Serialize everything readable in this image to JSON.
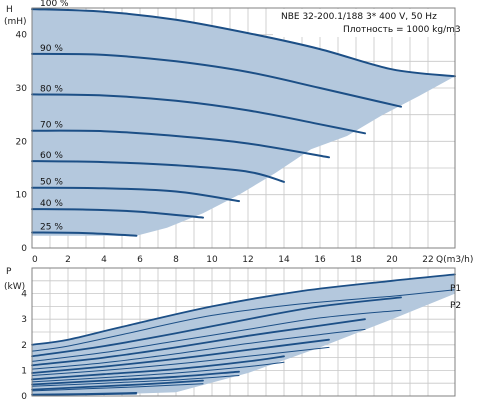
{
  "chart_data": [
    {
      "type": "line",
      "ylabel_top": "H",
      "ylabel_bottom": "(mH)",
      "xlabel": "Q(m3/h)",
      "info_line1": "NBE 32-200.1/188    3* 400 V, 50 Hz",
      "info_line2": "Плотность = 1000 kg/m3",
      "xlim": [
        0,
        23.5
      ],
      "ylim": [
        0,
        45
      ],
      "xticks": [
        "0",
        "2",
        "4",
        "6",
        "8",
        "10",
        "12",
        "14",
        "16",
        "18",
        "20",
        "22"
      ],
      "yticks": [
        "0",
        "10",
        "20",
        "30",
        "40"
      ],
      "grid": true,
      "region": {
        "upper": {
          "x": [
            0,
            4,
            8,
            12,
            16,
            20,
            23.5
          ],
          "y": [
            44.8,
            44.3,
            42.8,
            40.3,
            37.3,
            33.5,
            32.2
          ]
        },
        "lower": {
          "x": [
            0,
            3,
            5.8,
            7.5,
            9.5,
            11.5,
            13.5,
            15.5,
            17.5,
            19.5,
            21.5,
            23.5
          ],
          "y": [
            2.3,
            2.3,
            2.3,
            3.8,
            6.5,
            10,
            14,
            18.5,
            21,
            25,
            28.5,
            32.2
          ]
        }
      },
      "series": [
        {
          "name": "100 %",
          "x": [
            0,
            4,
            8,
            12,
            16,
            20,
            23.5
          ],
          "y": [
            44.8,
            44.3,
            42.8,
            40.3,
            37.3,
            33.5,
            32.2
          ]
        },
        {
          "name": "90 %",
          "x": [
            0,
            4,
            8,
            12,
            16,
            20.5
          ],
          "y": [
            36.4,
            36.2,
            35.0,
            33.0,
            30.0,
            26.5
          ]
        },
        {
          "name": "80 %",
          "x": [
            0,
            4,
            8,
            12,
            16,
            18.5
          ],
          "y": [
            28.8,
            28.6,
            27.6,
            25.8,
            23.2,
            21.5
          ]
        },
        {
          "name": "70 %",
          "x": [
            0,
            4,
            8,
            12,
            16.5
          ],
          "y": [
            22.0,
            21.9,
            21.0,
            19.6,
            17.0
          ]
        },
        {
          "name": "60 %",
          "x": [
            0,
            4,
            8,
            12,
            14
          ],
          "y": [
            16.3,
            16.1,
            15.5,
            14.3,
            12.4
          ]
        },
        {
          "name": "50 %",
          "x": [
            0,
            4,
            8,
            11.5
          ],
          "y": [
            11.3,
            11.2,
            10.6,
            8.8
          ]
        },
        {
          "name": "40 %",
          "x": [
            0,
            3,
            6,
            9.5
          ],
          "y": [
            7.3,
            7.2,
            6.8,
            5.7
          ]
        },
        {
          "name": "25 %",
          "x": [
            0,
            3,
            5.8
          ],
          "y": [
            2.9,
            2.8,
            2.3
          ]
        }
      ]
    },
    {
      "type": "line",
      "ylabel_top": "P",
      "ylabel_bottom": "(kW)",
      "xlim": [
        0,
        23.5
      ],
      "ylim": [
        0,
        5
      ],
      "yticks": [
        "0",
        "1",
        "2",
        "3",
        "4"
      ],
      "grid": true,
      "region": {
        "upper": {
          "x": [
            0,
            2,
            5,
            10,
            15,
            20,
            23.5
          ],
          "y": [
            2.0,
            2.2,
            2.7,
            3.5,
            4.1,
            4.5,
            4.75
          ]
        },
        "lower": {
          "x": [
            0,
            4,
            8,
            12,
            16,
            20,
            23.5
          ],
          "y": [
            0.05,
            0.05,
            0.15,
            0.9,
            1.9,
            3.0,
            4.0
          ]
        }
      },
      "p1_label": "P1",
      "p2_label": "P2",
      "p1_series": [
        {
          "x": [
            0,
            2,
            5,
            10,
            15,
            20,
            23.5
          ],
          "y": [
            2.0,
            2.2,
            2.7,
            3.5,
            4.1,
            4.5,
            4.75
          ]
        },
        {
          "x": [
            0,
            4,
            8,
            12,
            16,
            20.5
          ],
          "y": [
            1.55,
            1.95,
            2.45,
            3.0,
            3.5,
            3.85
          ]
        },
        {
          "x": [
            0,
            4,
            8,
            12,
            16,
            18.5
          ],
          "y": [
            1.2,
            1.5,
            1.9,
            2.35,
            2.75,
            3.0
          ]
        },
        {
          "x": [
            0,
            4,
            8,
            12,
            16.5
          ],
          "y": [
            0.9,
            1.15,
            1.45,
            1.8,
            2.2
          ]
        },
        {
          "x": [
            0,
            4,
            8,
            12,
            14
          ],
          "y": [
            0.65,
            0.85,
            1.05,
            1.35,
            1.55
          ]
        },
        {
          "x": [
            0,
            4,
            8,
            11.5
          ],
          "y": [
            0.45,
            0.6,
            0.75,
            0.95
          ]
        },
        {
          "x": [
            0,
            3,
            6,
            9.5
          ],
          "y": [
            0.25,
            0.35,
            0.45,
            0.6
          ]
        },
        {
          "x": [
            0,
            3,
            5.8
          ],
          "y": [
            0.05,
            0.08,
            0.12
          ]
        }
      ],
      "p2_series": [
        {
          "x": [
            0,
            2,
            5,
            10,
            15,
            20,
            23.5
          ],
          "y": [
            1.75,
            1.95,
            2.4,
            3.15,
            3.6,
            3.9,
            4.15
          ]
        },
        {
          "x": [
            0,
            4,
            8,
            12,
            16,
            20.5
          ],
          "y": [
            1.35,
            1.7,
            2.15,
            2.6,
            3.05,
            3.35
          ]
        },
        {
          "x": [
            0,
            4,
            8,
            12,
            16,
            18.5
          ],
          "y": [
            1.05,
            1.3,
            1.65,
            2.05,
            2.4,
            2.6
          ]
        },
        {
          "x": [
            0,
            4,
            8,
            12,
            16.5
          ],
          "y": [
            0.8,
            1.0,
            1.25,
            1.55,
            1.9
          ]
        },
        {
          "x": [
            0,
            4,
            8,
            12,
            14
          ],
          "y": [
            0.55,
            0.72,
            0.9,
            1.15,
            1.32
          ]
        },
        {
          "x": [
            0,
            4,
            8,
            11.5
          ],
          "y": [
            0.38,
            0.5,
            0.63,
            0.8
          ]
        },
        {
          "x": [
            0,
            3,
            6,
            9.5
          ],
          "y": [
            0.2,
            0.28,
            0.36,
            0.48
          ]
        },
        {
          "x": [
            0,
            3,
            5.8
          ],
          "y": [
            0.03,
            0.05,
            0.08
          ]
        }
      ]
    }
  ]
}
